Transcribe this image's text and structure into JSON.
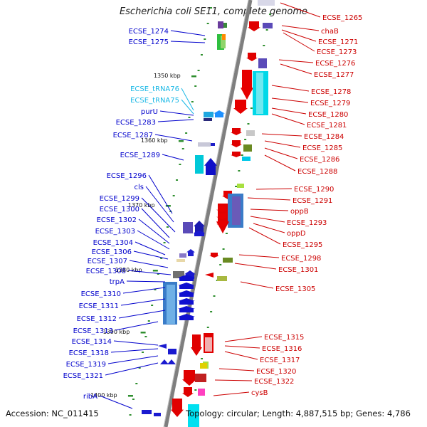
{
  "title": "Escherichia coli SE11, complete genome",
  "footer": {
    "accession": "Accession: NC_011415",
    "topology": "Topology: circular; Length: 4,887,515 bp; Genes: 4,786"
  },
  "colors": {
    "left_label": "#0000cc",
    "trna_label": "#1ab8e6",
    "right_label": "#cc0000",
    "backbone": "#808080",
    "tick": "#2f8f2f"
  },
  "scale_marks": [
    "1350 kbp",
    "1360 kbp",
    "1370 kbp",
    "1380 kbp",
    "1390 kbp",
    "1400 kbp"
  ],
  "left_genes": [
    "ECSE_1274",
    "ECSE_1275",
    "ECSE_tRNA76",
    "ECSE_tRNA75",
    "purU",
    "ECSE_1283",
    "ECSE_1287",
    "ECSE_1289",
    "ECSE_1296",
    "cls",
    "ECSE_1299",
    "ECSE_1300",
    "ECSE_1302",
    "ECSE_1303",
    "ECSE_1304",
    "ECSE_1306",
    "ECSE_1307",
    "ECSE_1308",
    "trpA",
    "ECSE_1310",
    "ECSE_1311",
    "ECSE_1312",
    "ECSE_1313",
    "ECSE_1314",
    "ECSE_1318",
    "ECSE_1319",
    "ECSE_1321",
    "ribA"
  ],
  "right_genes": [
    "ECSE_1265",
    "chaB",
    "ECSE_1271",
    "ECSE_1273",
    "ECSE_1276",
    "ECSE_1277",
    "ECSE_1278",
    "ECSE_1279",
    "ECSE_1280",
    "ECSE_1281",
    "ECSE_1284",
    "ECSE_1285",
    "ECSE_1286",
    "ECSE_1288",
    "ECSE_1290",
    "ECSE_1291",
    "oppB",
    "ECSE_1293",
    "oppD",
    "ECSE_1295",
    "ECSE_1298",
    "ECSE_1301",
    "ECSE_1305",
    "ECSE_1315",
    "ECSE_1316",
    "ECSE_1317",
    "ECSE_1320",
    "ECSE_1322",
    "cysB"
  ]
}
